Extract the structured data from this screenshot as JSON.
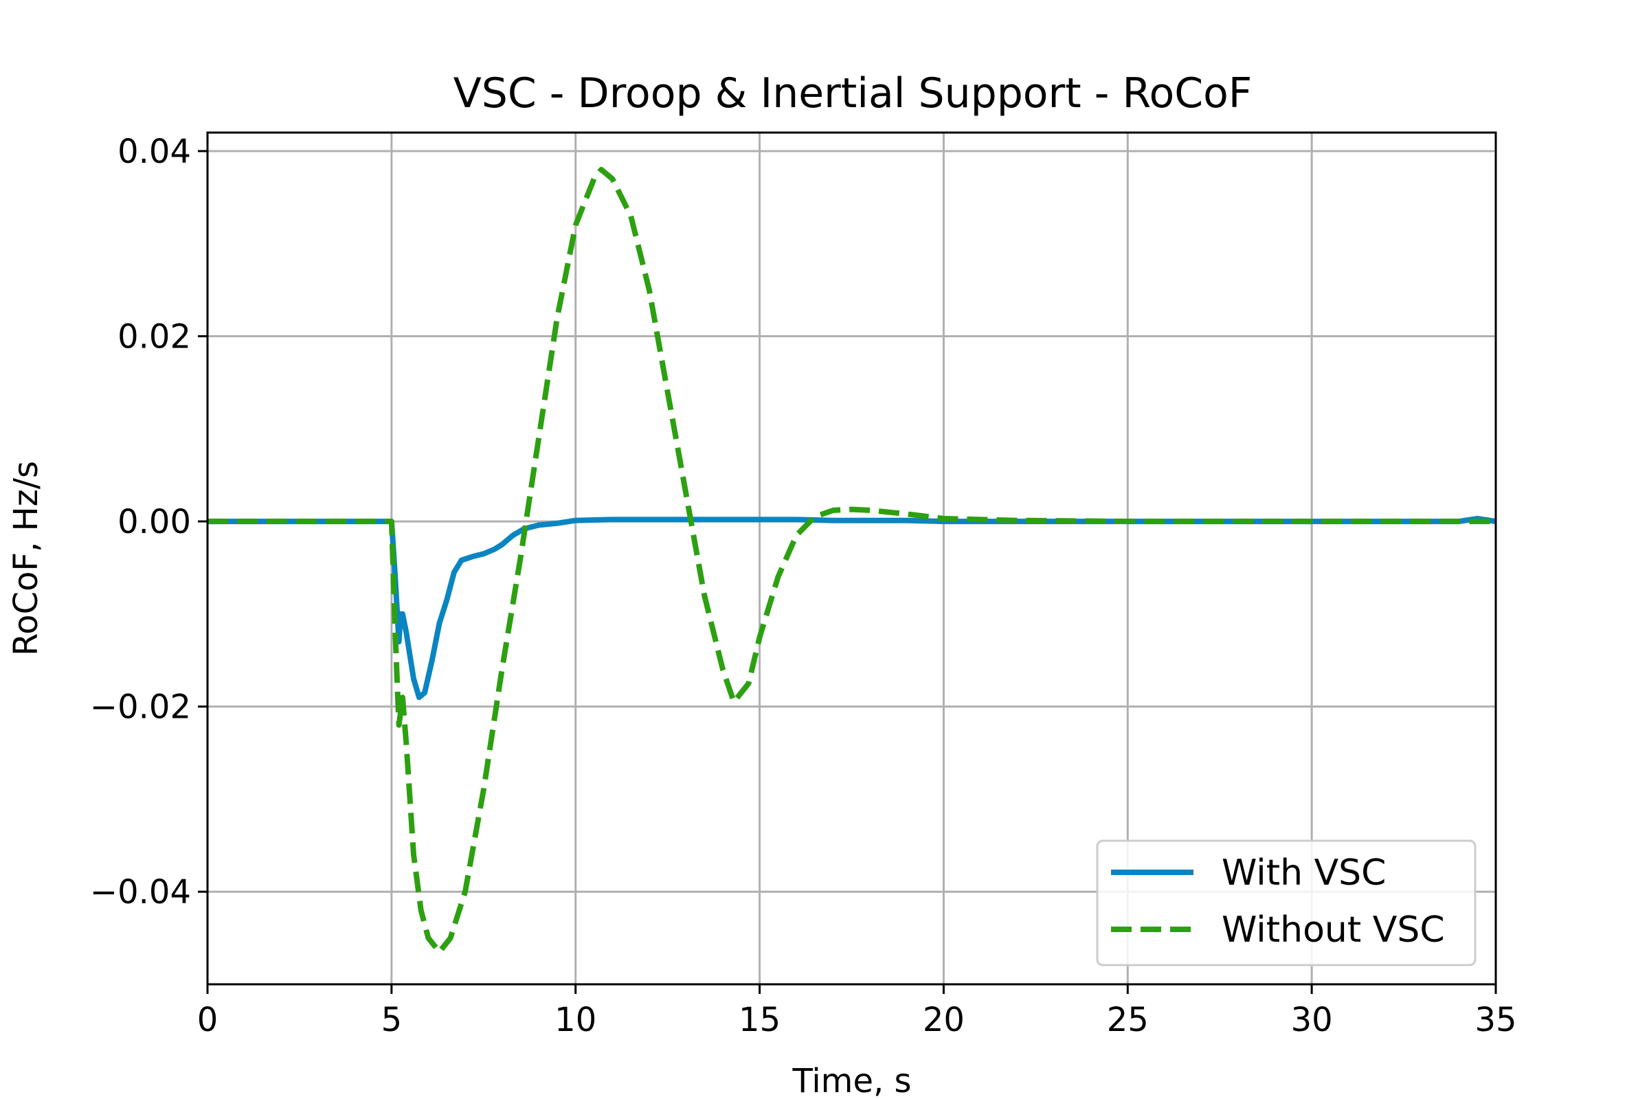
{
  "chart_data": {
    "type": "line",
    "title": "VSC - Droop & Inertial Support - RoCoF",
    "xlabel": "Time, s",
    "ylabel": "RoCoF, Hz/s",
    "xlim": [
      0,
      35
    ],
    "ylim": [
      -0.05,
      0.042
    ],
    "xticks": [
      0,
      5,
      10,
      15,
      20,
      25,
      30,
      35
    ],
    "xtick_labels": [
      "0",
      "5",
      "10",
      "15",
      "20",
      "25",
      "30",
      "35"
    ],
    "yticks": [
      -0.04,
      -0.02,
      0.0,
      0.02,
      0.04
    ],
    "ytick_labels": [
      "−0.04",
      "−0.02",
      "0.00",
      "0.02",
      "0.04"
    ],
    "grid": true,
    "legend_position": "bottom-right",
    "series": [
      {
        "name": "With VSC",
        "color": "#0a85c2",
        "style": "solid",
        "x": [
          0,
          1,
          2,
          3,
          4,
          4.9,
          5.0,
          5.1,
          5.2,
          5.25,
          5.3,
          5.4,
          5.6,
          5.75,
          5.9,
          6.1,
          6.3,
          6.5,
          6.7,
          6.9,
          7.2,
          7.5,
          7.8,
          8.0,
          8.3,
          8.6,
          9.0,
          9.5,
          10.0,
          11.0,
          12.0,
          13.0,
          14.0,
          15.0,
          16.0,
          17.0,
          18.0,
          19.0,
          20.0,
          22.0,
          25.0,
          28.0,
          31.0,
          34.0,
          34.5,
          35.0
        ],
        "y": [
          0,
          0,
          0,
          0,
          0,
          0,
          0,
          -0.006,
          -0.013,
          -0.01,
          -0.01,
          -0.012,
          -0.017,
          -0.019,
          -0.0185,
          -0.015,
          -0.011,
          -0.0085,
          -0.0055,
          -0.0042,
          -0.0038,
          -0.0035,
          -0.003,
          -0.0025,
          -0.0015,
          -0.0008,
          -0.0004,
          -0.0002,
          0.0001,
          0.0002,
          0.0002,
          0.0002,
          0.0002,
          0.0002,
          0.0002,
          0.0001,
          0.0001,
          0.0001,
          0,
          0,
          0,
          0,
          0,
          0,
          0.0003,
          0
        ]
      },
      {
        "name": "Without VSC",
        "color": "#2ca010",
        "style": "dashed",
        "x": [
          0,
          1,
          2,
          3,
          4,
          4.9,
          5.0,
          5.1,
          5.2,
          5.3,
          5.4,
          5.6,
          5.8,
          6.0,
          6.3,
          6.6,
          7.0,
          7.5,
          8.0,
          8.5,
          9.0,
          9.5,
          10.0,
          10.5,
          10.7,
          11.0,
          11.5,
          12.0,
          12.5,
          13.0,
          13.5,
          14.0,
          14.3,
          14.7,
          15.0,
          15.5,
          16.0,
          16.5,
          17.0,
          17.5,
          18.0,
          19.0,
          20.0,
          22.0,
          25.0,
          28.0,
          31.0,
          35.0
        ],
        "y": [
          0,
          0,
          0,
          0,
          0,
          0,
          0,
          -0.012,
          -0.022,
          -0.019,
          -0.024,
          -0.036,
          -0.042,
          -0.045,
          -0.0465,
          -0.045,
          -0.04,
          -0.029,
          -0.016,
          -0.004,
          0.009,
          0.022,
          0.032,
          0.037,
          0.038,
          0.037,
          0.033,
          0.025,
          0.014,
          0.003,
          -0.008,
          -0.016,
          -0.0195,
          -0.0175,
          -0.0125,
          -0.006,
          -0.0015,
          0.0005,
          0.0012,
          0.0013,
          0.0012,
          0.0008,
          0.0003,
          0.0001,
          0,
          0,
          0,
          0
        ]
      }
    ]
  }
}
